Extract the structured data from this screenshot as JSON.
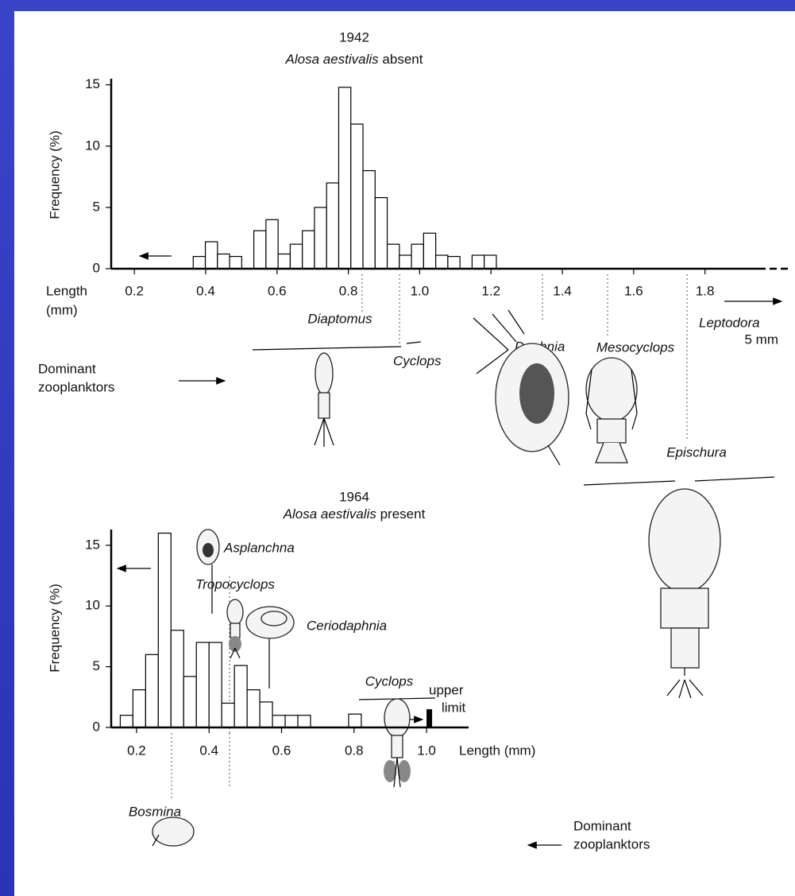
{
  "chart_data": [
    {
      "type": "histogram",
      "title": "1942",
      "subtitle": [
        "Alosa aestivalis",
        "absent"
      ],
      "x_label": [
        "Length",
        "(mm)"
      ],
      "y_label": "Frequency (%)",
      "bins": [
        0.365,
        0.399,
        0.433,
        0.467,
        0.501,
        0.535,
        0.569,
        0.603,
        0.637,
        0.671,
        0.705,
        0.739,
        0.773,
        0.807,
        0.841,
        0.875,
        0.909,
        0.943,
        0.977,
        1.011,
        1.045,
        1.079,
        1.113,
        1.147,
        1.181,
        1.215
      ],
      "values": [
        1,
        2.2,
        1.2,
        1,
        0,
        3.1,
        4,
        1.2,
        2,
        3.1,
        5,
        7,
        14.8,
        11.8,
        8,
        5.8,
        2,
        1.1,
        2,
        2.9,
        1.1,
        1,
        0,
        1.1,
        1.1
      ],
      "color": "#ffffff",
      "xlim": [
        0.135,
        1.95
      ],
      "xticks": [
        0.2,
        0.4,
        0.6,
        0.8,
        {
          "value": 1,
          "label": "1.0"
        },
        1.2,
        1.4,
        1.6,
        1.8
      ],
      "ylim": [
        0,
        15.5
      ],
      "yticks": [
        0,
        5,
        10,
        15
      ],
      "dominant_label": [
        "Dominant",
        "zooplanktors"
      ],
      "organisms": [
        "Diaptomus",
        "Cyclops",
        "Daphnia",
        "Mesocyclops",
        "Epischura",
        "Leptodora"
      ],
      "note": "5 mm"
    },
    {
      "type": "histogram",
      "title": "1964",
      "subtitle": [
        "Alosa aestivalis",
        "present"
      ],
      "x_label": "Length (mm)",
      "y_label": "Frequency (%)",
      "bins": [
        0.155,
        0.19,
        0.225,
        0.26,
        0.295,
        0.33,
        0.365,
        0.4,
        0.435,
        0.47,
        0.505,
        0.54,
        0.575,
        0.61,
        0.645,
        0.68,
        0.715,
        0.75,
        0.785,
        0.82
      ],
      "values": [
        1,
        3.1,
        6,
        16,
        8,
        4.2,
        7,
        7,
        2,
        5.1,
        3.1,
        2.1,
        1,
        1,
        1,
        0,
        0,
        0,
        1.1
      ],
      "color": "#ffffff",
      "xlim": [
        0.13,
        1.116
      ],
      "xticks": [
        0.2,
        0.4,
        0.6,
        0.8,
        {
          "value": 1,
          "label": "1.0"
        }
      ],
      "ylim": [
        0,
        16.3
      ],
      "yticks": [
        0,
        5,
        10,
        15
      ],
      "upper_limit": {
        "label": [
          "upper",
          "limit"
        ],
        "x": 1,
        "value": 1.5
      },
      "dominant_label": [
        "Dominant",
        "zooplanktors"
      ],
      "organisms": [
        "Asplanchna",
        "Ceriodaphnia",
        "Tropocyclops",
        "Bosmina",
        "Cyclops"
      ]
    }
  ]
}
